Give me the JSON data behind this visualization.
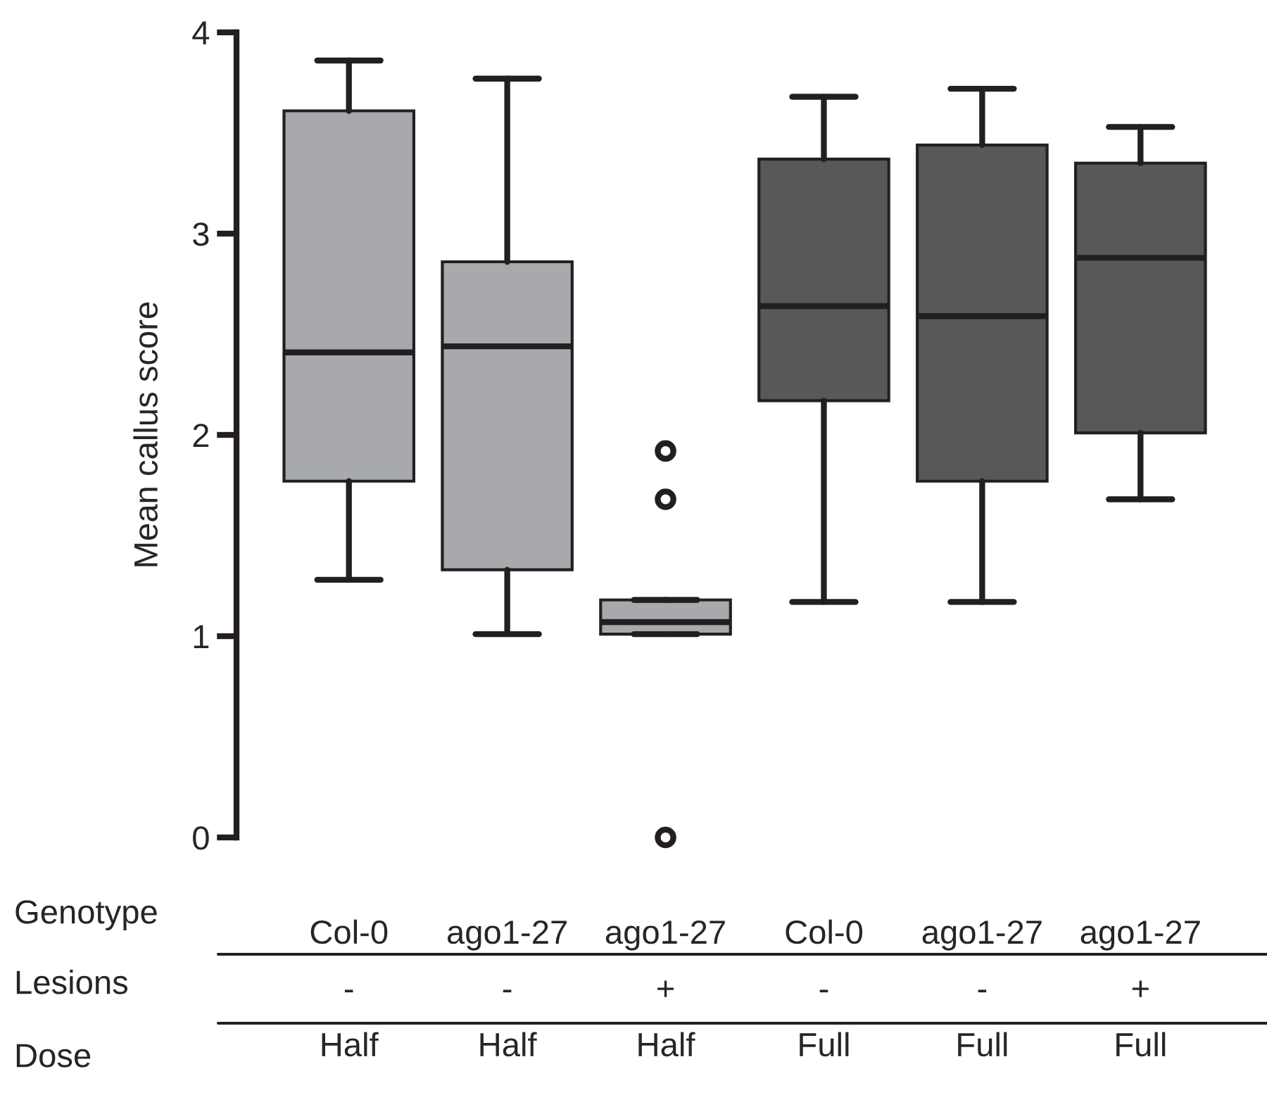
{
  "chart_data": {
    "type": "box",
    "ylabel": "Mean callus score",
    "categories": [
      "Col-0\n-\nHalf",
      "ago1-27\n-\nHalf",
      "ago1-27\n+\nHalf",
      "Col-0\n-\nFull",
      "ago1-27\n-\nFull",
      "ago1-27\n+\nFull"
    ],
    "colors": [
      "#a7a9ac",
      "#a7a9ac",
      "#a7a9ac",
      "#58585a",
      "#58585a",
      "#58585a"
    ],
    "boxes": [
      {
        "low": 1.28,
        "q1": 1.77,
        "median": 2.41,
        "q3": 3.61,
        "high": 3.86
      },
      {
        "low": 1.01,
        "q1": 1.33,
        "median": 2.44,
        "q3": 2.86,
        "high": 3.77
      },
      {
        "low": 1.01,
        "q1": 1.01,
        "median": 1.07,
        "q3": 1.18,
        "high": 1.18,
        "outliers": [
          1.92,
          1.68,
          0
        ]
      },
      {
        "low": 1.17,
        "q1": 2.17,
        "median": 2.64,
        "q3": 3.37,
        "high": 3.68
      },
      {
        "low": 1.17,
        "q1": 1.77,
        "median": 2.59,
        "q3": 3.44,
        "high": 3.72
      },
      {
        "low": 1.68,
        "q1": 2.01,
        "median": 2.88,
        "q3": 3.35,
        "high": 3.53
      }
    ],
    "annotations": [
      "Genotype",
      "Lesions",
      "Dose"
    ],
    "ylim": [
      0,
      4
    ],
    "yticks": [
      0,
      1,
      2,
      3,
      4
    ],
    "grid": false,
    "legend": false
  }
}
